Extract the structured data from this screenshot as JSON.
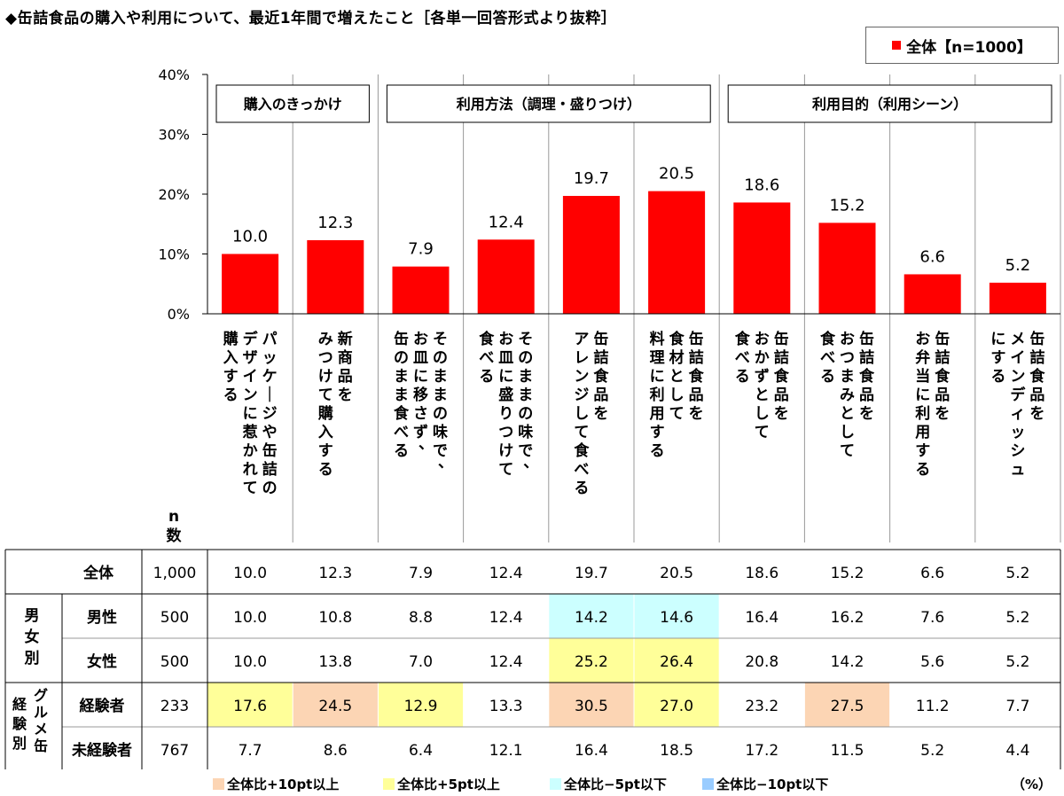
{
  "title": "◆缶詰食品の購入や利用について、最近1年間で増えたこと［各単一回答形式より抜粋］",
  "legend": {
    "label": "全体【n=1000】",
    "color": "#ff0000"
  },
  "groups": [
    {
      "label": "購入のきっかけ",
      "span": [
        0,
        1
      ]
    },
    {
      "label": "利用方法（調理・盛りつけ）",
      "span": [
        2,
        5
      ]
    },
    {
      "label": "利用目的（利用シーン）",
      "span": [
        6,
        9
      ]
    }
  ],
  "chart_data": {
    "type": "bar",
    "categories": [
      "パッケージや缶詰のデザインに惹かれて購入する",
      "新商品をみつけて購入する",
      "そのままの味で、お皿に移さず、缶のまま食べる",
      "そのままの味で、お皿に盛りつけて食べる",
      "缶詰食品をアレンジして食べる",
      "缶詰食品を食材として料理に利用する",
      "缶詰食品をおかずとして食べる",
      "缶詰食品をおつまみとして食べる",
      "缶詰食品をお弁当に利用する",
      "缶詰食品をメインディッシュにする"
    ],
    "category_lines": [
      [
        "パッケージや缶詰の",
        "デザインに惹かれて",
        "購入する"
      ],
      [
        "新商品を",
        "みつけて購入する"
      ],
      [
        "そのままの味で、",
        "お皿に移さず、",
        "缶のまま食べる"
      ],
      [
        "そのままの味で、",
        "お皿に盛りつけて",
        "食べる"
      ],
      [
        "缶詰食品を",
        "アレンジして食べる"
      ],
      [
        "缶詰食品を",
        "食材として",
        "料理に利用する"
      ],
      [
        "缶詰食品を",
        "おかずとして",
        "食べる"
      ],
      [
        "缶詰食品を",
        "おつまみとして",
        "食べる"
      ],
      [
        "缶詰食品を",
        "お弁当に利用する"
      ],
      [
        "缶詰食品を",
        "メインディッシュ",
        "にする"
      ]
    ],
    "series": [
      {
        "name": "全体【n=1000】",
        "values": [
          10.0,
          12.3,
          7.9,
          12.4,
          19.7,
          20.5,
          18.6,
          15.2,
          6.6,
          5.2
        ]
      }
    ],
    "yticks": [
      "0%",
      "10%",
      "20%",
      "30%",
      "40%"
    ],
    "ylim": [
      0,
      40
    ]
  },
  "table": {
    "n_header": "n\n数",
    "rows": [
      {
        "group": "",
        "label": "全体",
        "n": "1,000",
        "values": [
          "10.0",
          "12.3",
          "7.9",
          "12.4",
          "19.7",
          "20.5",
          "18.6",
          "15.2",
          "6.6",
          "5.2"
        ],
        "marks": [
          0,
          0,
          0,
          0,
          0,
          0,
          0,
          0,
          0,
          0
        ]
      },
      {
        "group": "男女別",
        "label": "男性",
        "n": "500",
        "values": [
          "10.0",
          "10.8",
          "8.8",
          "12.4",
          "14.2",
          "14.6",
          "16.4",
          "16.2",
          "7.6",
          "5.2"
        ],
        "marks": [
          0,
          0,
          0,
          0,
          -1,
          -1,
          0,
          0,
          0,
          0
        ]
      },
      {
        "group": "男女別",
        "label": "女性",
        "n": "500",
        "values": [
          "10.0",
          "13.8",
          "7.0",
          "12.4",
          "25.2",
          "26.4",
          "20.8",
          "14.2",
          "5.6",
          "5.2"
        ],
        "marks": [
          0,
          0,
          0,
          0,
          1,
          1,
          0,
          0,
          0,
          0
        ]
      },
      {
        "group": "グルメ缶経験別",
        "label": "経験者",
        "n": "233",
        "values": [
          "17.6",
          "24.5",
          "12.9",
          "13.3",
          "30.5",
          "27.0",
          "23.2",
          "27.5",
          "11.2",
          "7.7"
        ],
        "marks": [
          1,
          2,
          1,
          0,
          2,
          1,
          0,
          2,
          0,
          0
        ]
      },
      {
        "group": "グルメ缶経験別",
        "label": "未経験者",
        "n": "767",
        "values": [
          "7.7",
          "8.6",
          "6.4",
          "12.1",
          "16.4",
          "18.5",
          "17.2",
          "11.5",
          "5.2",
          "4.4"
        ],
        "marks": [
          0,
          0,
          0,
          0,
          0,
          0,
          0,
          0,
          0,
          0
        ]
      }
    ],
    "row_groups": [
      {
        "outer": "男女別",
        "inner": "",
        "rows": [
          1,
          2
        ]
      },
      {
        "outer": "経験別",
        "inner": "グルメ缶",
        "rows": [
          3,
          4
        ]
      }
    ]
  },
  "highlight_legend": [
    {
      "label": "全体比+10pt以上",
      "color": "#fcd5b4",
      "mark": 2
    },
    {
      "label": "全体比+5pt以上",
      "color": "#ffff99",
      "mark": 1
    },
    {
      "label": "全体比−5pt以下",
      "color": "#ccffff",
      "mark": -1
    },
    {
      "label": "全体比−10pt以下",
      "color": "#99ccff",
      "mark": -2
    }
  ],
  "unit_label": "（%）"
}
